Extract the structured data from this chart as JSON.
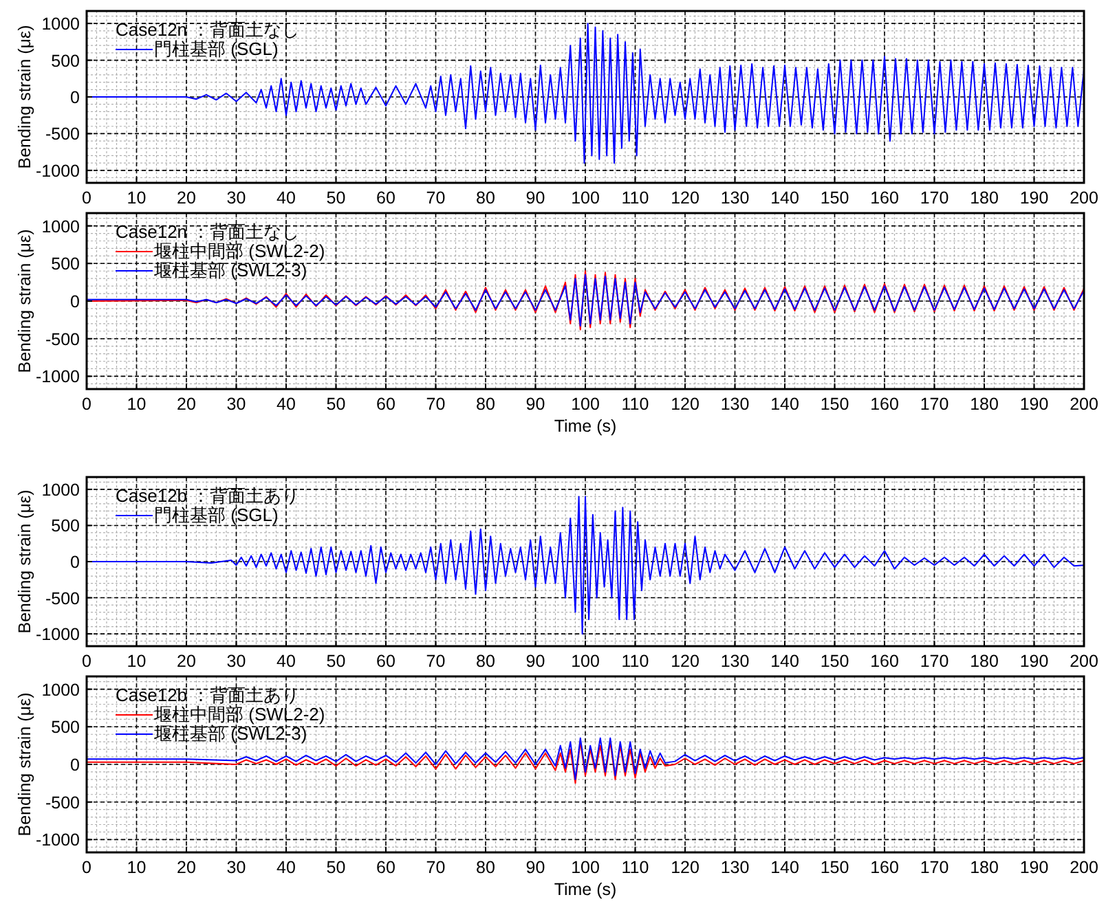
{
  "chart_data": [
    {
      "type": "line",
      "legend_title": "Case12n ：背面土なし",
      "ylabel": "Bending strain (με)",
      "legend": "top left",
      "grid": true,
      "xlim": [
        0,
        200
      ],
      "xticks": [
        0,
        10,
        20,
        30,
        40,
        50,
        60,
        70,
        80,
        90,
        100,
        110,
        120,
        130,
        140,
        150,
        160,
        170,
        180,
        190,
        200
      ],
      "ylim": [
        -1170,
        1170
      ],
      "yticks": [
        -1000,
        -500,
        0,
        500,
        1000
      ],
      "x": [
        0,
        10,
        20,
        22,
        24,
        26,
        28,
        30,
        32,
        34,
        35,
        36,
        37,
        38,
        39,
        40,
        41,
        42,
        43,
        44,
        45,
        46,
        47,
        48,
        49,
        50,
        51,
        52,
        53,
        54,
        55,
        56,
        58,
        60,
        62,
        64,
        66,
        68,
        69,
        70,
        71,
        72,
        73,
        74,
        75,
        76,
        77,
        78,
        79,
        80,
        81,
        82,
        83,
        84,
        85,
        86,
        87,
        88,
        89,
        90,
        91,
        92,
        93,
        94,
        95,
        96,
        97,
        98,
        99,
        99.8,
        100.5,
        101.3,
        102,
        102.8,
        103.5,
        104.3,
        105,
        105.8,
        106.5,
        107.3,
        108,
        108.8,
        109.5,
        110.3,
        111,
        112,
        113,
        114,
        115,
        116,
        117,
        118,
        119,
        120,
        121,
        122,
        123,
        124,
        125,
        126,
        127,
        128,
        129,
        130,
        131.2,
        132.3,
        133.4,
        134.5,
        135.6,
        136.7,
        137.8,
        138.9,
        140,
        141.1,
        142.2,
        143.3,
        144.4,
        145.5,
        146.6,
        147.7,
        148.8,
        150,
        151.1,
        152.2,
        153.3,
        154.4,
        155.5,
        156.6,
        157.7,
        158.8,
        160,
        161.1,
        162.2,
        163.3,
        164.4,
        165.5,
        166.6,
        167.7,
        168.8,
        170,
        171.1,
        172.2,
        173.3,
        174.4,
        175.5,
        176.6,
        177.7,
        178.8,
        180,
        181.1,
        182.2,
        183.3,
        184.4,
        185.5,
        186.6,
        187.7,
        188.8,
        190,
        191.1,
        192.2,
        193.3,
        194.4,
        195.5,
        196.6,
        197.7,
        198.8,
        200
      ],
      "series": [
        {
          "name": "門柱基部 (SGL)",
          "color": "#0000ff",
          "values": [
            0,
            0,
            0,
            -30,
            30,
            -40,
            50,
            -60,
            60,
            -80,
            100,
            -150,
            150,
            -200,
            250,
            -250,
            200,
            -200,
            220,
            -150,
            180,
            -200,
            150,
            -150,
            120,
            -180,
            150,
            -120,
            180,
            -100,
            120,
            -100,
            130,
            -120,
            150,
            -100,
            180,
            -150,
            150,
            -200,
            280,
            -250,
            300,
            -200,
            250,
            -430,
            420,
            -300,
            350,
            -200,
            400,
            -250,
            320,
            -200,
            300,
            -280,
            320,
            -350,
            250,
            -450,
            430,
            -350,
            300,
            -300,
            400,
            -350,
            700,
            -600,
            800,
            -900,
            1000,
            -800,
            950,
            -850,
            900,
            -800,
            800,
            -900,
            850,
            -700,
            750,
            -600,
            600,
            -800,
            650,
            -400,
            300,
            -300,
            250,
            -350,
            250,
            -250,
            200,
            -300,
            250,
            -300,
            380,
            -350,
            300,
            -400,
            400,
            -480,
            420,
            -450,
            430,
            -400,
            450,
            -420,
            400,
            -400,
            420,
            -400,
            430,
            -400,
            400,
            -380,
            400,
            -420,
            380,
            -450,
            450,
            -500,
            500,
            -480,
            500,
            -500,
            500,
            -480,
            500,
            -500,
            550,
            -600,
            520,
            -500,
            520,
            -500,
            500,
            -480,
            500,
            -500,
            480,
            -480,
            500,
            -450,
            480,
            -450,
            480,
            -450,
            450,
            -450,
            460,
            -420,
            450,
            -420,
            440,
            -420,
            430,
            -400,
            420,
            -400,
            400,
            -420,
            400,
            -400,
            400,
            -400,
            380
          ]
        }
      ]
    },
    {
      "type": "line",
      "legend_title": "Case12n ：背面土なし",
      "ylabel": "Bending strain (με)",
      "xlabel": "Time (s)",
      "legend": "top left",
      "grid": true,
      "xlim": [
        0,
        200
      ],
      "xticks": [
        0,
        10,
        20,
        30,
        40,
        50,
        60,
        70,
        80,
        90,
        100,
        110,
        120,
        130,
        140,
        150,
        160,
        170,
        180,
        190,
        200
      ],
      "ylim": [
        -1170,
        1170
      ],
      "yticks": [
        -1000,
        -500,
        0,
        500,
        1000
      ],
      "x": [
        0,
        20,
        22,
        24,
        26,
        28,
        30,
        32,
        34,
        36,
        38,
        40,
        42,
        44,
        46,
        48,
        50,
        52,
        54,
        56,
        58,
        60,
        62,
        64,
        66,
        68,
        70,
        72,
        74,
        76,
        78,
        80,
        82,
        84,
        86,
        88,
        90,
        92,
        94,
        96,
        97,
        98,
        99,
        100,
        101,
        102,
        103,
        104,
        105,
        106,
        107,
        108,
        109,
        110,
        111,
        112,
        114,
        116,
        118,
        120,
        122,
        124,
        126,
        128,
        130,
        132,
        134,
        136,
        138,
        140,
        142,
        144,
        146,
        148,
        150,
        152,
        154,
        156,
        158,
        160,
        162,
        164,
        166,
        168,
        170,
        172,
        174,
        176,
        178,
        180,
        182,
        184,
        186,
        188,
        190,
        192,
        194,
        196,
        198,
        200
      ],
      "series": [
        {
          "name": "堰柱中間部 (SWL2-2)",
          "color": "#ff0000",
          "values": [
            0,
            10,
            -20,
            20,
            -20,
            30,
            -30,
            40,
            -40,
            60,
            -80,
            100,
            -80,
            90,
            -70,
            80,
            -60,
            70,
            -60,
            60,
            -50,
            70,
            -50,
            80,
            -60,
            80,
            -100,
            150,
            -120,
            130,
            -150,
            180,
            -120,
            150,
            -120,
            150,
            -150,
            200,
            -150,
            250,
            -300,
            350,
            -380,
            400,
            -350,
            350,
            -300,
            380,
            -300,
            350,
            -280,
            300,
            -350,
            300,
            -200,
            150,
            -120,
            130,
            -100,
            150,
            -120,
            180,
            -100,
            150,
            -120,
            170,
            -120,
            180,
            -130,
            190,
            -130,
            200,
            -150,
            200,
            -150,
            210,
            -140,
            220,
            -150,
            230,
            -150,
            220,
            -140,
            220,
            -140,
            210,
            -130,
            210,
            -130,
            200,
            -130,
            200,
            -120,
            190,
            -120,
            190,
            -120,
            180,
            -120,
            170
          ]
        },
        {
          "name": "堰柱基部 (SWL2-3)",
          "color": "#0000ff",
          "values": [
            20,
            20,
            -10,
            20,
            -20,
            20,
            -30,
            30,
            -30,
            50,
            -60,
            80,
            -60,
            70,
            -60,
            60,
            -50,
            60,
            -50,
            50,
            -40,
            60,
            -40,
            60,
            -50,
            60,
            -80,
            120,
            -100,
            100,
            -120,
            150,
            -100,
            120,
            -100,
            120,
            -120,
            150,
            -120,
            200,
            -250,
            300,
            -330,
            350,
            -300,
            300,
            -250,
            330,
            -250,
            300,
            -230,
            250,
            -300,
            250,
            -150,
            120,
            -100,
            110,
            -80,
            120,
            -100,
            150,
            -80,
            120,
            -100,
            140,
            -100,
            150,
            -110,
            160,
            -110,
            170,
            -120,
            170,
            -120,
            180,
            -120,
            190,
            -120,
            200,
            -130,
            190,
            -120,
            190,
            -120,
            180,
            -110,
            180,
            -110,
            170,
            -110,
            170,
            -100,
            160,
            -100,
            160,
            -100,
            150,
            -100,
            140
          ]
        }
      ]
    },
    {
      "type": "line",
      "legend_title": "Case12b ：背面土あり",
      "ylabel": "Bending strain (με)",
      "legend": "top left",
      "grid": true,
      "xlim": [
        0,
        200
      ],
      "xticks": [
        0,
        10,
        20,
        30,
        40,
        50,
        60,
        70,
        80,
        90,
        100,
        110,
        120,
        130,
        140,
        150,
        160,
        170,
        180,
        190,
        200
      ],
      "ylim": [
        -1170,
        1170
      ],
      "yticks": [
        -1000,
        -500,
        0,
        500,
        1000
      ],
      "x": [
        0,
        20,
        25,
        29,
        30,
        31,
        32,
        33,
        34,
        35,
        36,
        37,
        38,
        39,
        40,
        41,
        42,
        43,
        44,
        45,
        46,
        47,
        48,
        49,
        50,
        51,
        52,
        53,
        54,
        55,
        56,
        57,
        58,
        59,
        60,
        61,
        62,
        63,
        64,
        65,
        66,
        67,
        68,
        69,
        70,
        71,
        72,
        73,
        74,
        75,
        76,
        77,
        78,
        79,
        80,
        81,
        82,
        83,
        84,
        85,
        86,
        87,
        88,
        89,
        90,
        91,
        92,
        93,
        94,
        95,
        96,
        97,
        98,
        98.7,
        99.4,
        100,
        100.7,
        101.5,
        102.3,
        103,
        103.8,
        104.5,
        105.3,
        106,
        106.8,
        107.5,
        108.3,
        109,
        109.8,
        110.5,
        111.3,
        112,
        113,
        114,
        115,
        116,
        117,
        118,
        119,
        120,
        121,
        122,
        123,
        124,
        125,
        126,
        127,
        128,
        130,
        132,
        134,
        136,
        138,
        140,
        142,
        144,
        146,
        148,
        150,
        152,
        154,
        156,
        158,
        160,
        162,
        164,
        166,
        168,
        170,
        172,
        174,
        176,
        178,
        180,
        182,
        184,
        186,
        188,
        190,
        192,
        194,
        196,
        198,
        200
      ],
      "series": [
        {
          "name": "門柱基部 (SGL)",
          "color": "#0000ff",
          "values": [
            0,
            0,
            -20,
            20,
            -50,
            60,
            -60,
            80,
            -80,
            100,
            -60,
            120,
            -100,
            100,
            -150,
            150,
            -120,
            130,
            -160,
            180,
            -200,
            200,
            -180,
            200,
            -150,
            150,
            -120,
            140,
            -150,
            150,
            -200,
            220,
            -300,
            200,
            -150,
            120,
            -100,
            100,
            -120,
            100,
            -100,
            120,
            -150,
            200,
            -250,
            250,
            -300,
            300,
            -250,
            250,
            -380,
            420,
            -450,
            450,
            -400,
            350,
            -300,
            250,
            -200,
            180,
            -150,
            200,
            -250,
            300,
            -350,
            350,
            -300,
            200,
            -300,
            400,
            -500,
            600,
            -700,
            900,
            -1000,
            900,
            -800,
            650,
            -500,
            400,
            -350,
            300,
            -500,
            700,
            -800,
            750,
            -800,
            700,
            -800,
            550,
            -400,
            300,
            -250,
            200,
            -200,
            250,
            -200,
            250,
            -200,
            250,
            -300,
            350,
            -250,
            200,
            -150,
            150,
            -100,
            100,
            -120,
            150,
            -150,
            180,
            -150,
            200,
            -100,
            150,
            -100,
            120,
            -80,
            100,
            -80,
            80,
            -60,
            150,
            -100,
            60,
            -50,
            50,
            -50,
            60,
            -50,
            60,
            -60,
            100,
            -60,
            80,
            -60,
            100,
            -60,
            100,
            -80,
            60,
            -60,
            -50
          ]
        }
      ]
    },
    {
      "type": "line",
      "legend_title": "Case12b ：背面土あり",
      "ylabel": "Bending strain (με)",
      "xlabel": "Time (s)",
      "legend": "top left",
      "grid": true,
      "xlim": [
        0,
        200
      ],
      "xticks": [
        0,
        10,
        20,
        30,
        40,
        50,
        60,
        70,
        80,
        90,
        100,
        110,
        120,
        130,
        140,
        150,
        160,
        170,
        180,
        190,
        200
      ],
      "ylim": [
        -1170,
        1170
      ],
      "yticks": [
        -1000,
        -500,
        0,
        500,
        1000
      ],
      "x": [
        0,
        10,
        20,
        30,
        32,
        34,
        36,
        38,
        40,
        42,
        44,
        46,
        48,
        50,
        52,
        54,
        56,
        58,
        60,
        62,
        64,
        66,
        68,
        70,
        72,
        74,
        76,
        78,
        80,
        82,
        84,
        86,
        88,
        90,
        92,
        94,
        95,
        96,
        97,
        98,
        99,
        100,
        101,
        102,
        103,
        104,
        105,
        106,
        107,
        108,
        109,
        110,
        111,
        112,
        113,
        114,
        115,
        116,
        118,
        120,
        122,
        124,
        126,
        128,
        130,
        132,
        134,
        136,
        138,
        140,
        142,
        144,
        146,
        148,
        150,
        152,
        154,
        156,
        158,
        160,
        162,
        164,
        166,
        168,
        170,
        172,
        174,
        176,
        178,
        180,
        182,
        184,
        186,
        188,
        190,
        192,
        194,
        196,
        198,
        200
      ],
      "series": [
        {
          "name": "堰柱中間部 (SWL2-2)",
          "color": "#ff0000",
          "values": [
            30,
            30,
            30,
            0,
            60,
            10,
            60,
            0,
            70,
            -10,
            60,
            0,
            70,
            -20,
            80,
            -20,
            60,
            -10,
            70,
            -20,
            100,
            -30,
            110,
            -60,
            130,
            -60,
            120,
            -40,
            100,
            -30,
            120,
            -50,
            150,
            -60,
            150,
            -80,
            150,
            -100,
            200,
            -250,
            300,
            -150,
            200,
            -100,
            250,
            -150,
            300,
            -200,
            250,
            -150,
            200,
            -180,
            150,
            -100,
            100,
            -50,
            80,
            -20,
            0,
            80,
            0,
            70,
            -10,
            80,
            0,
            70,
            -10,
            70,
            0,
            60,
            0,
            60,
            0,
            60,
            10,
            60,
            10,
            60,
            0,
            50,
            10,
            50,
            10,
            50,
            10,
            50,
            10,
            50,
            10,
            50,
            10,
            50,
            10,
            50,
            10,
            50,
            10,
            50,
            10,
            50
          ]
        },
        {
          "name": "堰柱基部 (SWL2-3)",
          "color": "#0000ff",
          "values": [
            70,
            70,
            70,
            50,
            100,
            50,
            110,
            40,
            110,
            40,
            120,
            50,
            110,
            40,
            130,
            40,
            110,
            50,
            120,
            30,
            150,
            20,
            160,
            0,
            180,
            10,
            160,
            20,
            150,
            30,
            170,
            20,
            200,
            0,
            200,
            -20,
            250,
            -50,
            300,
            -200,
            350,
            -100,
            250,
            -50,
            350,
            -100,
            350,
            -150,
            300,
            -100,
            300,
            -120,
            200,
            -50,
            180,
            0,
            150,
            20,
            40,
            130,
            50,
            120,
            40,
            120,
            50,
            110,
            40,
            110,
            50,
            110,
            60,
            100,
            60,
            100,
            60,
            100,
            60,
            100,
            60,
            90,
            70,
            90,
            70,
            90,
            70,
            90,
            70,
            90,
            70,
            90,
            70,
            90,
            70,
            90,
            70,
            90,
            70,
            90,
            70,
            90
          ]
        }
      ]
    }
  ]
}
